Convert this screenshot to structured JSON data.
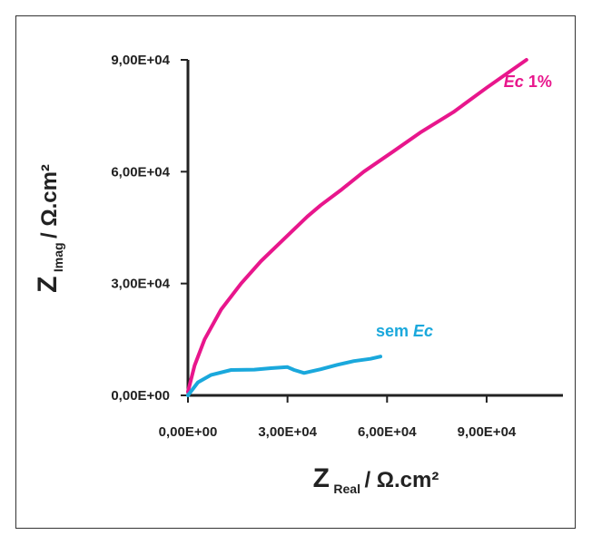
{
  "chart_data": {
    "type": "line",
    "title": "",
    "xlabel": {
      "main": "Z",
      "sub": "Real",
      "unit": " / Ω.cm²"
    },
    "ylabel": {
      "main": "Z",
      "sub": "Imag",
      "unit": " / Ω.cm²"
    },
    "xlim": [
      0,
      113000
    ],
    "ylim": [
      0,
      90000
    ],
    "x_ticks": [
      0,
      30000,
      60000,
      90000
    ],
    "x_tick_labels": [
      "0,00E+00",
      "3,00E+04",
      "6,00E+04",
      "9,00E+04"
    ],
    "y_ticks": [
      0,
      30000,
      60000,
      90000
    ],
    "y_tick_labels": [
      "0,00E+00",
      "3,00E+04",
      "6,00E+04",
      "9,00E+04"
    ],
    "grid": false,
    "series": [
      {
        "name": "Ec 1%",
        "label_parts": [
          {
            "text": "Ec",
            "italic": true
          },
          {
            "text": " 1%",
            "italic": false
          }
        ],
        "color": "#e8168c",
        "x": [
          0,
          2000,
          5000,
          10000,
          16000,
          22000,
          29000,
          36000,
          40000,
          46000,
          53000,
          62000,
          70000,
          80000,
          90000,
          102000
        ],
        "y": [
          1000,
          8000,
          15000,
          23000,
          30000,
          36000,
          42000,
          48000,
          51000,
          55000,
          60000,
          65500,
          70500,
          76000,
          82500,
          90000
        ]
      },
      {
        "name": "sem Ec",
        "label_parts": [
          {
            "text": "sem ",
            "italic": false
          },
          {
            "text": "Ec",
            "italic": true
          }
        ],
        "color": "#1aa8dc",
        "x": [
          0,
          3000,
          7000,
          13000,
          20000,
          25000,
          30000,
          32000,
          35000,
          40000,
          45000,
          50000,
          55000,
          58000
        ],
        "y": [
          0,
          3500,
          5500,
          6800,
          6900,
          7300,
          7600,
          6800,
          6000,
          7000,
          8200,
          9200,
          9800,
          10400
        ]
      }
    ]
  }
}
